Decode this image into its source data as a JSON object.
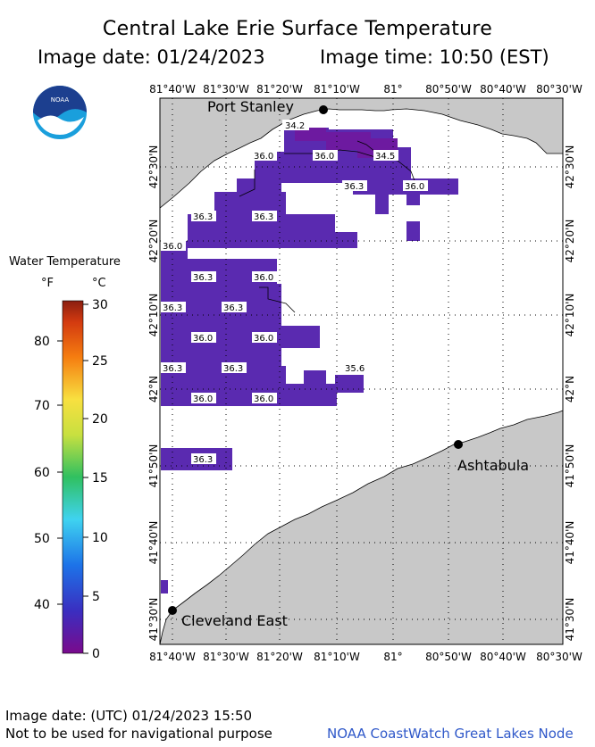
{
  "header": {
    "title": "Central Lake Erie Surface Temperature",
    "image_date": "Image date: 01/24/2023",
    "image_time": "Image time: 10:50 (EST)"
  },
  "logo": {
    "text": "NOAA"
  },
  "legend": {
    "title": "Water Temperature",
    "unit_f": "°F",
    "unit_c": "°C",
    "f_ticks": [
      "80",
      "70",
      "60",
      "50",
      "40"
    ],
    "c_ticks": [
      "30",
      "25",
      "20",
      "15",
      "10",
      "5",
      "0"
    ]
  },
  "axes": {
    "lon_top": [
      "81°40'W",
      "81°30'W",
      "81°20'W",
      "81°10'W",
      "81°",
      "80°50'W",
      "80°40'W",
      "80°30'W"
    ],
    "lon_bottom": [
      "81°40'W",
      "81°30'W",
      "81°20'W",
      "81°10'W",
      "81°",
      "80°50'W",
      "80°40'W",
      "80°30'W"
    ],
    "lat": [
      "42°30'N",
      "42°20'N",
      "42°10'N",
      "42°N",
      "41°50'N",
      "41°40'N",
      "41°30'N"
    ]
  },
  "cities": {
    "port_stanley": "Port Stanley",
    "ashtabula": "Ashtabula",
    "cleveland_east": "Cleveland East"
  },
  "temp_labels": [
    "34.2",
    "36.0",
    "36.0",
    "34.5",
    "36.3",
    "36.0",
    "36.3",
    "36.3",
    "36.0",
    "36.3",
    "36.0",
    "36.3",
    "36.3",
    "36.0",
    "36.0",
    "36.3",
    "36.3",
    "35.6",
    "36.0",
    "36.0",
    "36.3"
  ],
  "footer": {
    "utc_date": "Image date: (UTC) 01/24/2023  15:50",
    "disclaimer": "Not to be used for navigational purpose",
    "source": "NOAA CoastWatch Great Lakes Node"
  },
  "colors": {
    "land": "#c8c8c8",
    "water_cold": "#5a2ab0",
    "water_colder": "#6d1aa0"
  }
}
